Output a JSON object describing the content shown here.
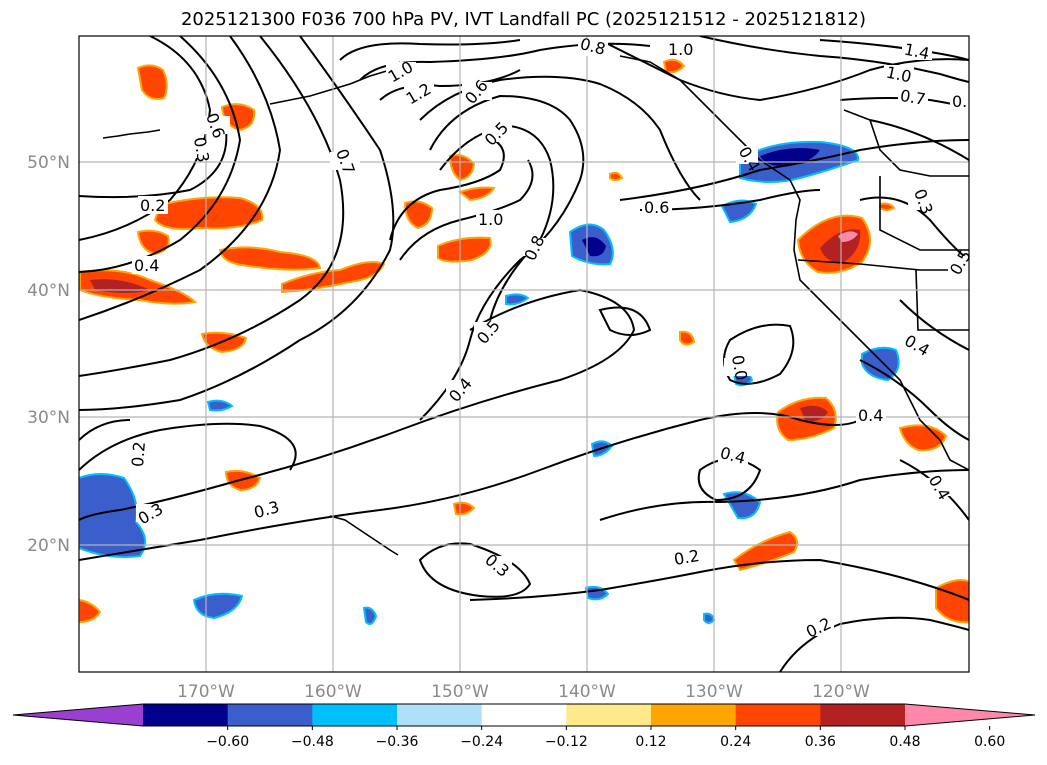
{
  "title": "2025121300 F036 700 hPa PV, IVT Landfall PC (2025121512 - 2025121812)",
  "map": {
    "lat_labels": [
      "50°N",
      "40°N",
      "30°N",
      "20°N"
    ],
    "lon_labels": [
      "170°W",
      "160°W",
      "150°W",
      "140°W",
      "130°W",
      "120°W"
    ],
    "extent": {
      "lon_min": -180,
      "lon_max": -110,
      "lat_min": 10,
      "lat_max": 60
    }
  },
  "colorbar": {
    "ticks": [
      "−0.60",
      "−0.48",
      "−0.36",
      "−0.24",
      "−0.12",
      "0.12",
      "0.24",
      "0.36",
      "0.48",
      "0.60"
    ],
    "colors": [
      "#9b3fd1",
      "#00008b",
      "#3a5fcd",
      "#00bfff",
      "#b0e0f8",
      "#ffffff",
      "#ffe98a",
      "#ffa500",
      "#ff4500",
      "#b22222",
      "#ff88aa"
    ],
    "extend": "both"
  },
  "contour_labels": [
    {
      "text": "0.8"
    },
    {
      "text": "1.0"
    },
    {
      "text": "1.4"
    },
    {
      "text": "1.0"
    },
    {
      "text": "0.7"
    },
    {
      "text": "0."
    },
    {
      "text": "1.0"
    },
    {
      "text": "1.2"
    },
    {
      "text": "0.6"
    },
    {
      "text": "0.5"
    },
    {
      "text": "0.6"
    },
    {
      "text": "0.3"
    },
    {
      "text": "0.7"
    },
    {
      "text": "0.2"
    },
    {
      "text": "0.4"
    },
    {
      "text": "1.0"
    },
    {
      "text": "0.8"
    },
    {
      "text": "0.6"
    },
    {
      "text": "0.3"
    },
    {
      "text": "0.5"
    },
    {
      "text": "0.5"
    },
    {
      "text": "0.4"
    },
    {
      "text": "0.4"
    },
    {
      "text": "0.4"
    },
    {
      "text": "0.0"
    },
    {
      "text": "0.4"
    },
    {
      "text": "0.2"
    },
    {
      "text": "0.3"
    },
    {
      "text": "0.3"
    },
    {
      "text": "0.3"
    },
    {
      "text": "0.4"
    },
    {
      "text": "0.2"
    },
    {
      "text": "0.2"
    },
    {
      "text": "0.4"
    }
  ]
}
